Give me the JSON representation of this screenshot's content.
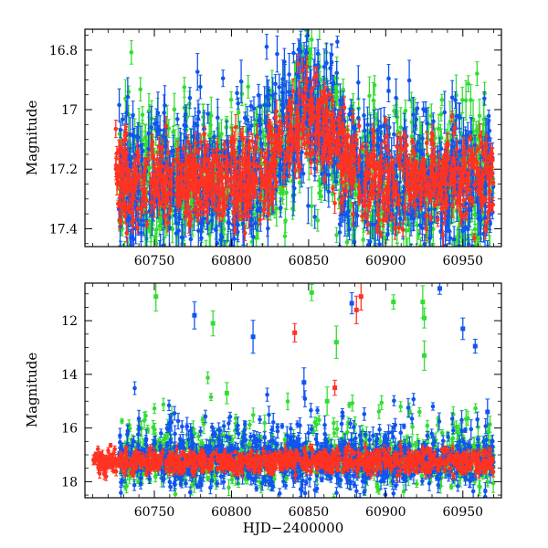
{
  "colors": {
    "series_green": "#33dd33",
    "series_blue": "#1155ee",
    "series_red": "#ff3322",
    "axis": "#000000"
  },
  "chart_data": [
    {
      "type": "scatter",
      "title": "",
      "xlabel": "",
      "ylabel": "Magnitude",
      "xlim": [
        60705,
        60975
      ],
      "ylim": [
        17.46,
        16.73
      ],
      "y_inverted": true,
      "x_ticks": [
        "60750",
        "60800",
        "60850",
        "60900",
        "60950"
      ],
      "x_tick_values": [
        60750,
        60800,
        60850,
        60900,
        60950
      ],
      "y_ticks": [
        "16.8",
        "17",
        "17.2",
        "17.4"
      ],
      "y_tick_values": [
        16.8,
        17.0,
        17.2,
        17.4
      ],
      "series": [
        {
          "name": "green",
          "color": "#33dd33",
          "x_range": [
            60727,
            60970
          ],
          "baseline": 17.24,
          "scatter": 0.13
        },
        {
          "name": "blue",
          "color": "#1155ee",
          "x_range": [
            60727,
            60970
          ],
          "baseline": 17.24,
          "scatter": 0.13
        },
        {
          "name": "red",
          "color": "#ff3322",
          "x_range": [
            60725,
            60970
          ],
          "baseline": 17.24,
          "scatter": 0.07
        }
      ],
      "features": [
        {
          "x_center": 60852,
          "width": 20,
          "peak": 17.0
        },
        {
          "x_center": 60830,
          "width": 6,
          "peak": 17.18
        }
      ]
    },
    {
      "type": "scatter",
      "title": "",
      "xlabel": "HJD−2400000",
      "ylabel": "Magnitude",
      "xlim": [
        60705,
        60975
      ],
      "ylim": [
        18.6,
        10.6
      ],
      "y_inverted": true,
      "x_ticks": [
        "60750",
        "60800",
        "60850",
        "60900",
        "60950"
      ],
      "x_tick_values": [
        60750,
        60800,
        60850,
        60900,
        60950
      ],
      "y_ticks": [
        "12",
        "14",
        "16",
        "18"
      ],
      "y_tick_values": [
        12,
        14,
        16,
        18
      ],
      "series": [
        {
          "name": "green",
          "color": "#33dd33",
          "x_range": [
            60727,
            60970
          ],
          "baseline": 17.2,
          "scatter": 0.45
        },
        {
          "name": "blue",
          "color": "#1155ee",
          "x_range": [
            60727,
            60970
          ],
          "baseline": 17.2,
          "scatter": 0.5
        },
        {
          "name": "red",
          "color": "#ff3322",
          "x_range": [
            60710,
            60970
          ],
          "baseline": 17.25,
          "scatter": 0.2
        }
      ],
      "outliers": [
        {
          "series": "green",
          "x": 60751,
          "y": 11.1
        },
        {
          "series": "blue",
          "x": 60776,
          "y": 11.8
        },
        {
          "series": "green",
          "x": 60788,
          "y": 12.1
        },
        {
          "series": "blue",
          "x": 60814,
          "y": 12.6
        },
        {
          "series": "red",
          "x": 60841,
          "y": 12.45
        },
        {
          "series": "green",
          "x": 60852,
          "y": 10.95
        },
        {
          "series": "blue",
          "x": 60878,
          "y": 11.35
        },
        {
          "series": "red",
          "x": 60884,
          "y": 11.1
        },
        {
          "series": "red",
          "x": 60881,
          "y": 11.6
        },
        {
          "series": "green",
          "x": 60905,
          "y": 11.3
        },
        {
          "series": "green",
          "x": 60924,
          "y": 11.3
        },
        {
          "series": "green",
          "x": 60925,
          "y": 11.9
        },
        {
          "series": "blue",
          "x": 60935,
          "y": 10.8
        },
        {
          "series": "blue",
          "x": 60950,
          "y": 12.3
        },
        {
          "series": "blue",
          "x": 60958,
          "y": 12.95
        },
        {
          "series": "green",
          "x": 60925,
          "y": 13.3
        },
        {
          "series": "green",
          "x": 60797,
          "y": 14.7
        },
        {
          "series": "blue",
          "x": 60847,
          "y": 14.3
        },
        {
          "series": "red",
          "x": 60867,
          "y": 14.5
        },
        {
          "series": "green",
          "x": 60868,
          "y": 12.8
        },
        {
          "series": "green",
          "x": 60862,
          "y": 15.0
        },
        {
          "series": "blue",
          "x": 60966,
          "y": 15.4
        }
      ]
    }
  ]
}
